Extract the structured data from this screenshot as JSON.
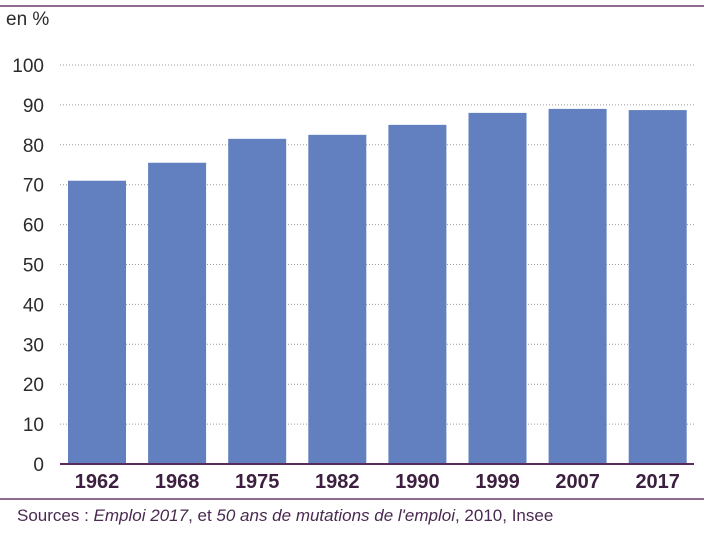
{
  "chart_data": {
    "type": "bar",
    "unit_label": "en %",
    "categories": [
      "1962",
      "1968",
      "1975",
      "1982",
      "1990",
      "1999",
      "2007",
      "2017"
    ],
    "values": [
      71,
      75.5,
      81.5,
      82.5,
      85,
      88,
      89,
      88.7
    ],
    "yticks": [
      0,
      10,
      20,
      30,
      40,
      50,
      60,
      70,
      80,
      90,
      100
    ],
    "ylim": [
      0,
      100
    ],
    "grid": "horizontal-dotted",
    "bar_color": "#6280bf",
    "frame_color": "#6a3a6e"
  },
  "source": {
    "prefix": "Sources : ",
    "ref1": "Emploi 2017",
    "mid": ", et ",
    "ref2": "50 ans de mutations de l'emploi",
    "suffix": ", 2010, Insee"
  }
}
